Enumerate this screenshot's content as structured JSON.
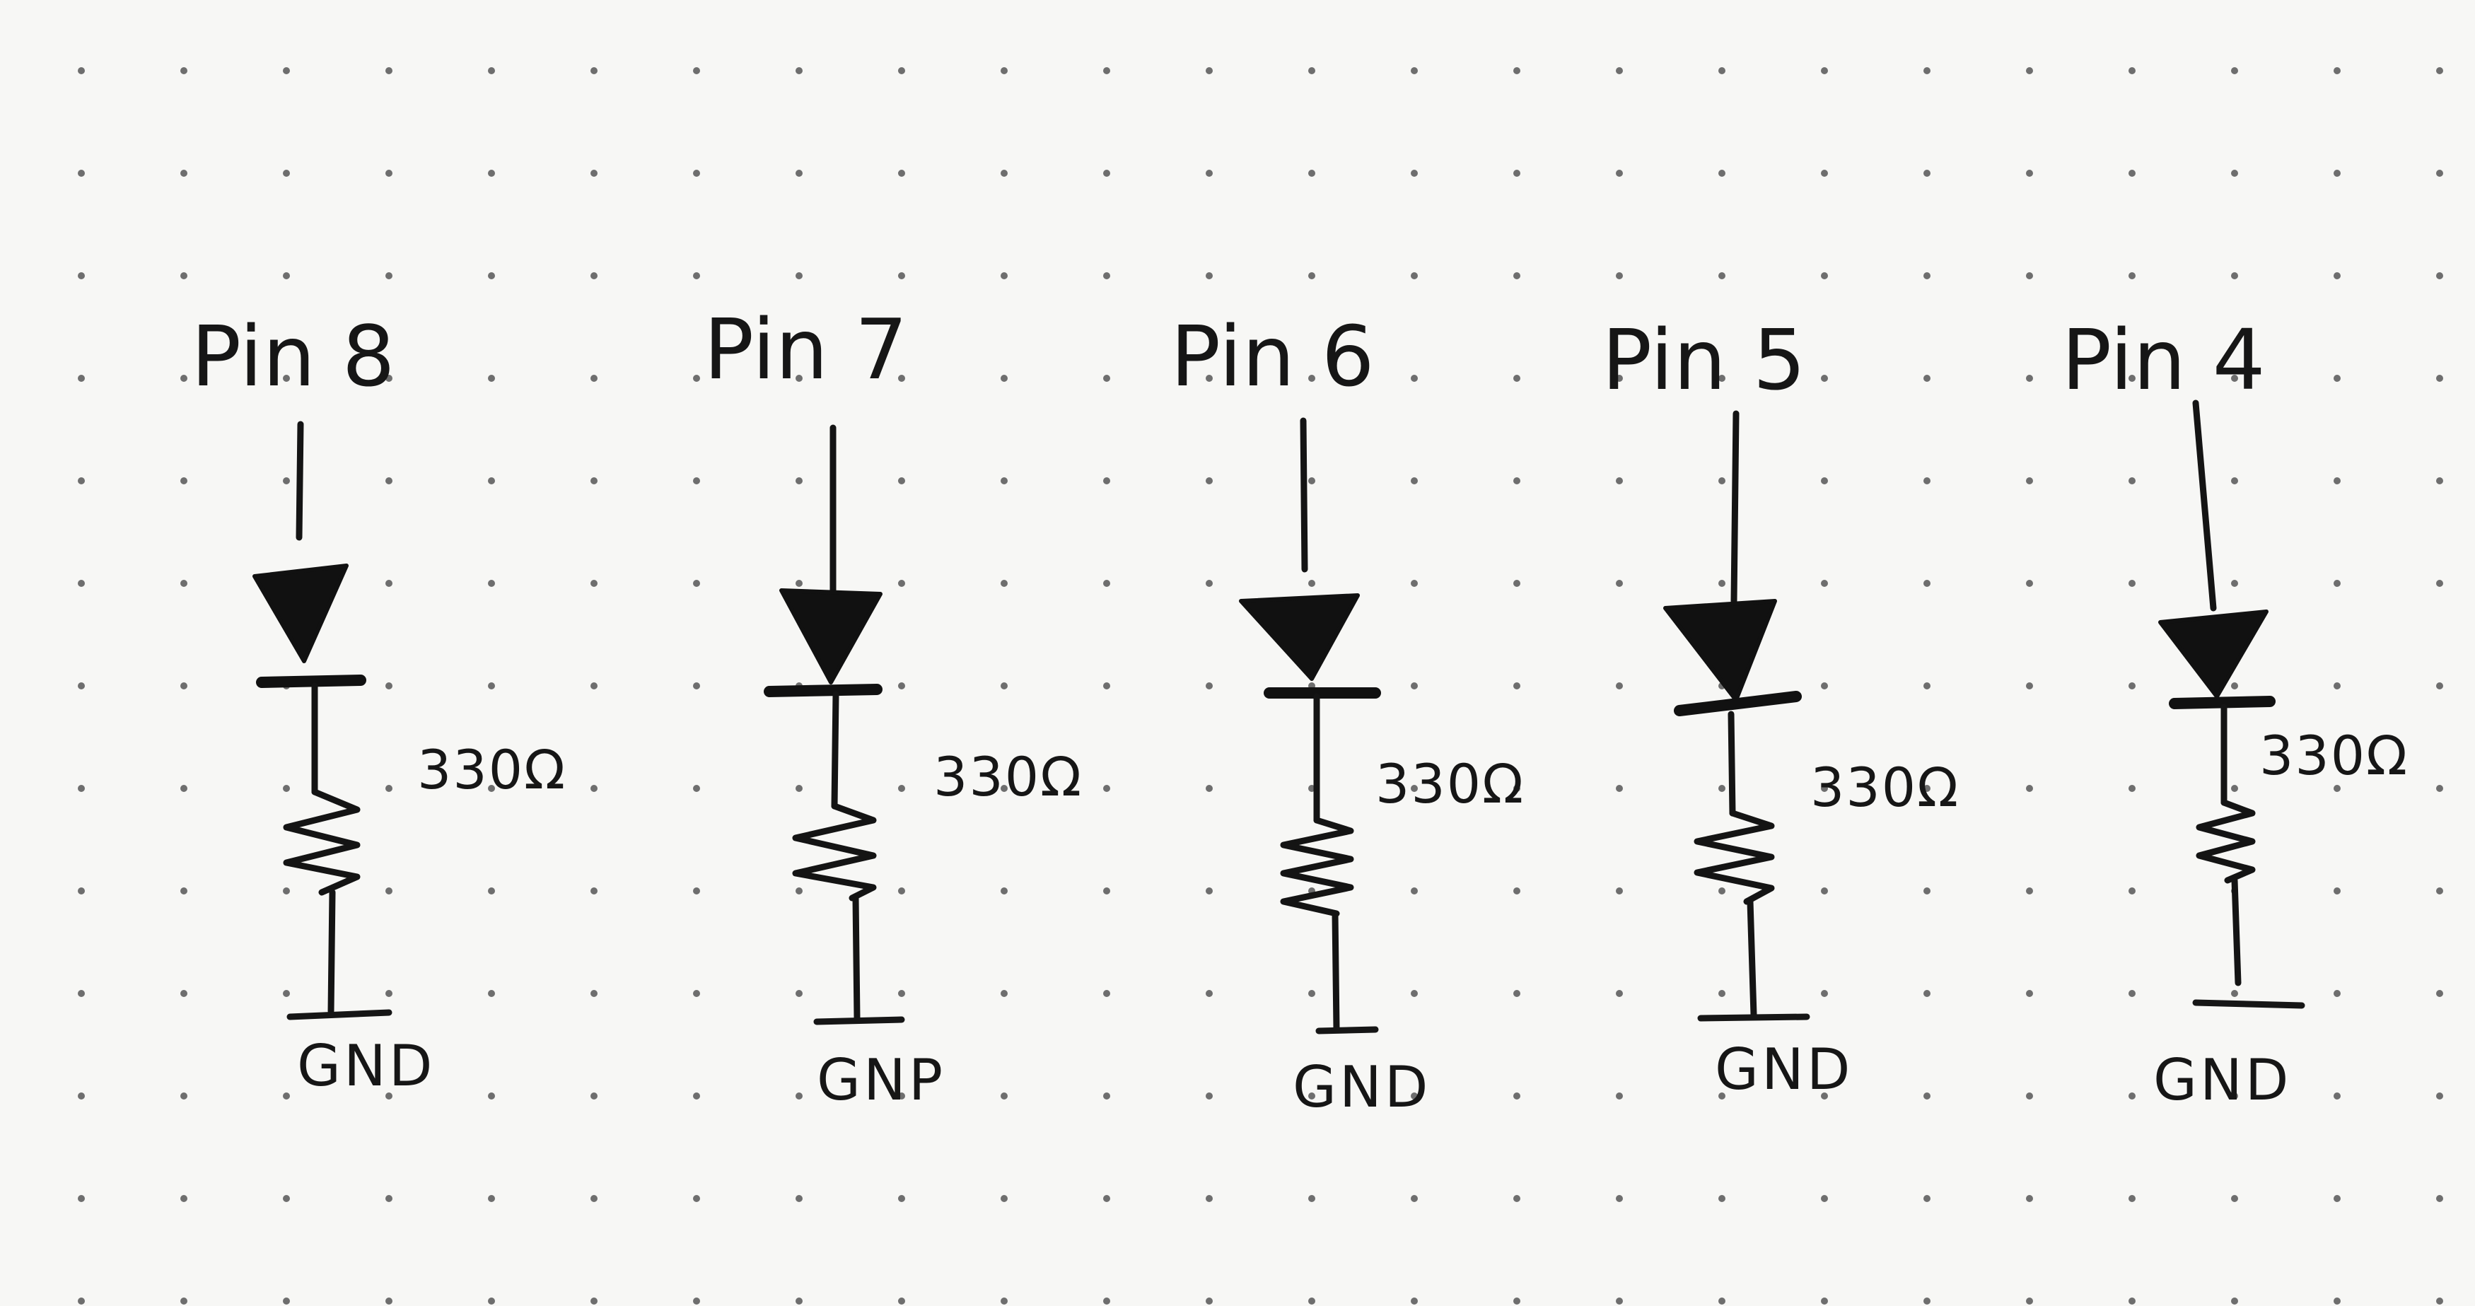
{
  "title": "",
  "circuits": [
    {
      "pin_label": "Pin 8",
      "resistor_label": "330Ω",
      "ground_label": "GND"
    },
    {
      "pin_label": "Pin 7",
      "resistor_label": "330Ω",
      "ground_label": "GNP"
    },
    {
      "pin_label": "Pin 6",
      "resistor_label": "330Ω",
      "ground_label": "GND"
    },
    {
      "pin_label": "Pin 5",
      "resistor_label": "330Ω",
      "ground_label": "GND"
    },
    {
      "pin_label": "Pin 4",
      "resistor_label": "330Ω",
      "ground_label": "GND"
    }
  ],
  "colors": {
    "ink": "#141414",
    "paper": "#f7f7f5",
    "grid_dot": "#6e6e6e"
  },
  "icons": {
    "led": "led-diode-icon",
    "resistor": "resistor-zigzag-icon",
    "ground": "ground-bar-icon"
  }
}
